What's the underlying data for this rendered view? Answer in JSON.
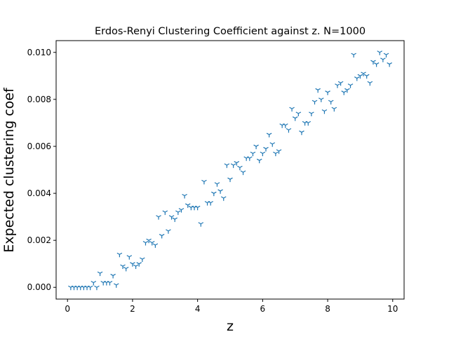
{
  "chart_data": {
    "type": "scatter",
    "title": "Erdos-Renyi Clustering Coefficient against z. N=1000",
    "xlabel": "z",
    "ylabel": "Expected clustering coef",
    "xlim": [
      -0.35,
      10.35
    ],
    "ylim": [
      -0.0005,
      0.0105
    ],
    "xticks": [
      0,
      2,
      4,
      6,
      8,
      10
    ],
    "xtick_labels": [
      "0",
      "2",
      "4",
      "6",
      "8",
      "10"
    ],
    "yticks": [
      0,
      0.002,
      0.004,
      0.006,
      0.008,
      0.01
    ],
    "ytick_labels": [
      "0.000",
      "0.002",
      "0.004",
      "0.006",
      "0.008",
      "0.010"
    ],
    "marker": "tri_down",
    "marker_color": "#1f77b4",
    "grid": false,
    "series": [
      {
        "points": [
          [
            0.1,
            0.0
          ],
          [
            0.2,
            0.0
          ],
          [
            0.3,
            0.0
          ],
          [
            0.4,
            0.0
          ],
          [
            0.5,
            0.0
          ],
          [
            0.6,
            0.0
          ],
          [
            0.7,
            0.0
          ],
          [
            0.8,
            0.0002
          ],
          [
            0.9,
            0.0
          ],
          [
            1.0,
            0.0006
          ],
          [
            1.1,
            0.0002
          ],
          [
            1.2,
            0.0002
          ],
          [
            1.3,
            0.0002
          ],
          [
            1.4,
            0.0005
          ],
          [
            1.5,
            0.0001
          ],
          [
            1.6,
            0.0014
          ],
          [
            1.7,
            0.0009
          ],
          [
            1.8,
            0.0008
          ],
          [
            1.9,
            0.0013
          ],
          [
            2.0,
            0.001
          ],
          [
            2.1,
            0.0009
          ],
          [
            2.2,
            0.001
          ],
          [
            2.3,
            0.0012
          ],
          [
            2.4,
            0.0019
          ],
          [
            2.5,
            0.002
          ],
          [
            2.6,
            0.0019
          ],
          [
            2.7,
            0.0018
          ],
          [
            2.8,
            0.003
          ],
          [
            2.9,
            0.0022
          ],
          [
            3.0,
            0.0032
          ],
          [
            3.1,
            0.0024
          ],
          [
            3.2,
            0.003
          ],
          [
            3.3,
            0.0029
          ],
          [
            3.4,
            0.0032
          ],
          [
            3.5,
            0.0033
          ],
          [
            3.6,
            0.0039
          ],
          [
            3.7,
            0.0035
          ],
          [
            3.8,
            0.0034
          ],
          [
            3.9,
            0.0034
          ],
          [
            4.0,
            0.0034
          ],
          [
            4.1,
            0.0027
          ],
          [
            4.2,
            0.0045
          ],
          [
            4.3,
            0.0036
          ],
          [
            4.4,
            0.0036
          ],
          [
            4.5,
            0.004
          ],
          [
            4.6,
            0.0044
          ],
          [
            4.7,
            0.0041
          ],
          [
            4.8,
            0.0038
          ],
          [
            4.9,
            0.0052
          ],
          [
            5.0,
            0.0046
          ],
          [
            5.1,
            0.0052
          ],
          [
            5.2,
            0.0053
          ],
          [
            5.3,
            0.0051
          ],
          [
            5.4,
            0.0049
          ],
          [
            5.5,
            0.0055
          ],
          [
            5.6,
            0.0055
          ],
          [
            5.7,
            0.0057
          ],
          [
            5.8,
            0.006
          ],
          [
            5.9,
            0.0054
          ],
          [
            6.0,
            0.0057
          ],
          [
            6.1,
            0.0059
          ],
          [
            6.2,
            0.0065
          ],
          [
            6.3,
            0.0061
          ],
          [
            6.4,
            0.0057
          ],
          [
            6.5,
            0.0058
          ],
          [
            6.6,
            0.0069
          ],
          [
            6.7,
            0.0069
          ],
          [
            6.8,
            0.0067
          ],
          [
            6.9,
            0.0076
          ],
          [
            7.0,
            0.0072
          ],
          [
            7.1,
            0.0074
          ],
          [
            7.2,
            0.0066
          ],
          [
            7.3,
            0.007
          ],
          [
            7.4,
            0.007
          ],
          [
            7.5,
            0.0074
          ],
          [
            7.6,
            0.0079
          ],
          [
            7.7,
            0.0084
          ],
          [
            7.8,
            0.008
          ],
          [
            7.9,
            0.0075
          ],
          [
            8.0,
            0.0083
          ],
          [
            8.1,
            0.0079
          ],
          [
            8.2,
            0.0076
          ],
          [
            8.3,
            0.0086
          ],
          [
            8.4,
            0.0087
          ],
          [
            8.5,
            0.0083
          ],
          [
            8.6,
            0.0084
          ],
          [
            8.7,
            0.0086
          ],
          [
            8.8,
            0.0099
          ],
          [
            8.9,
            0.0089
          ],
          [
            9.0,
            0.009
          ],
          [
            9.1,
            0.0091
          ],
          [
            9.2,
            0.009
          ],
          [
            9.3,
            0.0087
          ],
          [
            9.4,
            0.0096
          ],
          [
            9.5,
            0.0095
          ],
          [
            9.6,
            0.01
          ],
          [
            9.7,
            0.0097
          ],
          [
            9.8,
            0.0099
          ],
          [
            9.9,
            0.0095
          ]
        ]
      }
    ]
  }
}
